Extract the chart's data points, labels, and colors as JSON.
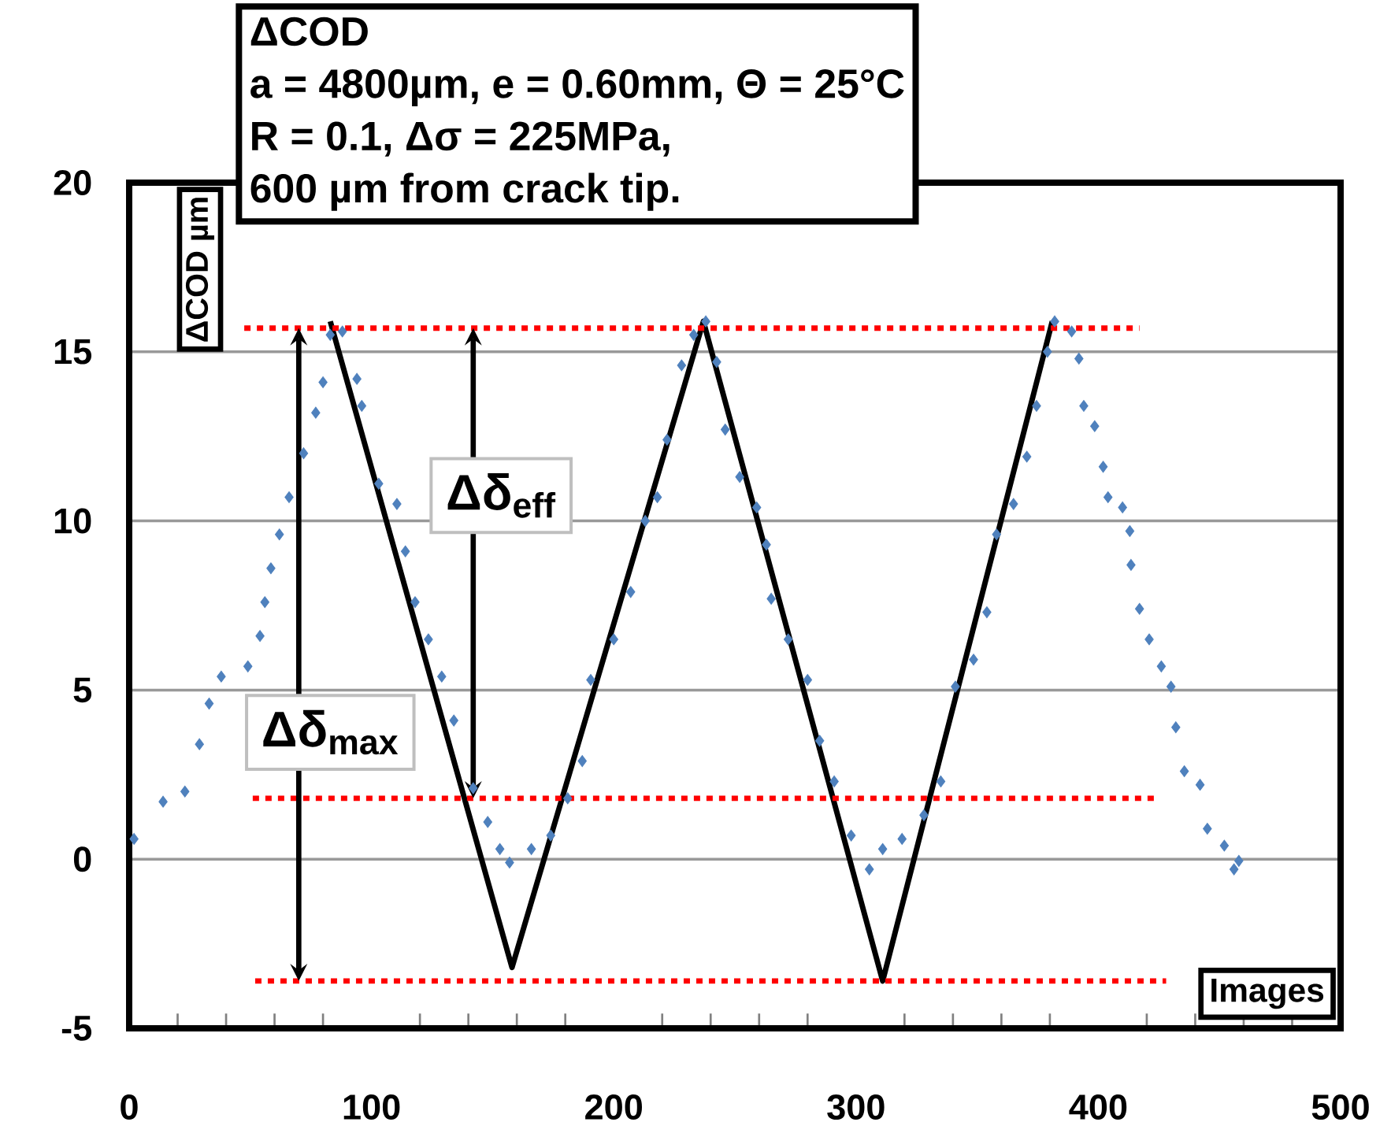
{
  "chart_data": {
    "type": "scatter",
    "title": "ΔCOD",
    "subtitle": "a = 4800µm, e = 0.60mm, Θ = 25°C",
    "xlabel": "Images",
    "ylabel": "ΔCOD µm",
    "xlim": [
      0,
      500
    ],
    "ylim": [
      -5,
      20
    ],
    "xticks": [
      0,
      100,
      200,
      300,
      400,
      500
    ],
    "yticks": [
      -5,
      0,
      5,
      10,
      15,
      20
    ],
    "grid": "y",
    "annotations": [
      "R = 0.1, Δσ = 225MPa,",
      "600 µm from crack tip.",
      "Δδ$_{eff}$",
      "Δδ$_{max}$"
    ],
    "series": [
      {
        "color": "#4f81bd",
        "marker": "diamond",
        "x": [
          2,
          14,
          23,
          29,
          33,
          38,
          49,
          54,
          56,
          58.5,
          62,
          66,
          72,
          77,
          80,
          83,
          88,
          94,
          96,
          103,
          110.5,
          114,
          118,
          123.5,
          129,
          134,
          142,
          148,
          153,
          157,
          166,
          174,
          181,
          187,
          190.5,
          200,
          207,
          213,
          218,
          222,
          228,
          233,
          238,
          242.5,
          246,
          252,
          259,
          263,
          265,
          272,
          280,
          285,
          291,
          298,
          305.5,
          311,
          319,
          328,
          335,
          341,
          348.5,
          354,
          358,
          365,
          370.5,
          374.5,
          379,
          382,
          389,
          392,
          394,
          398.5,
          402,
          404,
          410,
          413,
          413.5,
          417,
          421,
          426,
          430,
          432,
          435.5,
          442,
          445,
          452,
          456,
          458
        ],
        "values": [
          0.6,
          1.7,
          2.0,
          3.4,
          4.6,
          5.4,
          5.7,
          6.6,
          7.6,
          8.6,
          9.6,
          10.7,
          12.0,
          13.2,
          14.1,
          15.5,
          15.6,
          14.2,
          13.4,
          11.1,
          10.5,
          9.1,
          7.6,
          6.5,
          5.4,
          4.1,
          2.1,
          1.1,
          0.3,
          -0.1,
          0.3,
          0.7,
          1.8,
          2.9,
          5.3,
          6.5,
          7.9,
          10.0,
          10.7,
          12.4,
          14.6,
          15.5,
          15.9,
          14.7,
          12.7,
          11.3,
          10.4,
          9.3,
          7.7,
          6.5,
          5.3,
          3.5,
          2.3,
          0.7,
          -0.3,
          0.3,
          0.6,
          1.3,
          2.3,
          5.1,
          5.9,
          7.3,
          9.6,
          10.5,
          11.9,
          13.4,
          15.0,
          15.9,
          15.6,
          14.8,
          13.4,
          12.8,
          11.6,
          10.7,
          10.4,
          9.7,
          8.7,
          7.4,
          6.5,
          5.7,
          5.1,
          3.9,
          2.6,
          2.2,
          0.9,
          0.4,
          -0.3,
          -0.05
        ]
      },
      {
        "type": "line",
        "color": "#000000",
        "line_style": "solid",
        "x": [
          83,
          158,
          237,
          311,
          381
        ],
        "values": [
          15.9,
          -3.2,
          15.9,
          -3.6,
          15.9
        ]
      },
      {
        "type": "line",
        "color": "#ff0000",
        "line_style": "dotted",
        "x": [
          47.5,
          417
        ],
        "values": [
          15.7,
          15.7
        ]
      },
      {
        "type": "line",
        "color": "#ff0000",
        "line_style": "dotted",
        "x": [
          51,
          423
        ],
        "values": [
          1.8,
          1.8
        ]
      },
      {
        "type": "line",
        "color": "#ff0000",
        "line_style": "dotted",
        "x": [
          52,
          428
        ],
        "values": [
          -3.6,
          -3.6
        ]
      }
    ]
  }
}
